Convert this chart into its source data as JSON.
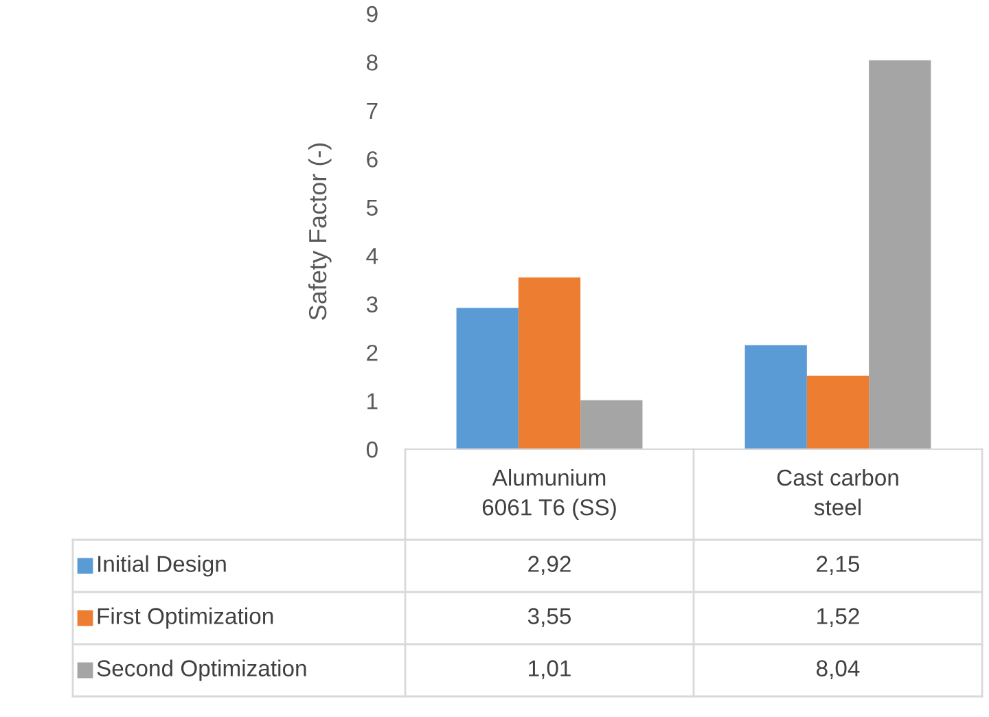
{
  "chart_data": {
    "type": "bar",
    "ylabel": "Safety Factor (-)",
    "categories": [
      "Alumunium\n6061 T6 (SS)",
      "Cast carbon\nsteel"
    ],
    "series": [
      {
        "name": "Initial Design",
        "color": "#5b9bd5",
        "values": [
          2.92,
          2.15
        ],
        "value_labels": [
          "2,92",
          "2,15"
        ]
      },
      {
        "name": "First Optimization",
        "color": "#ed7d31",
        "values": [
          3.55,
          1.52
        ],
        "value_labels": [
          "3,55",
          "1,52"
        ]
      },
      {
        "name": "Second Optimization",
        "color": "#a5a5a5",
        "values": [
          1.01,
          8.04
        ],
        "value_labels": [
          "1,01",
          "8,04"
        ]
      }
    ],
    "ylim": [
      0,
      9
    ],
    "yticks": [
      0,
      1,
      2,
      3,
      4,
      5,
      6,
      7,
      8,
      9
    ],
    "grid": false,
    "legend": "bottom"
  }
}
